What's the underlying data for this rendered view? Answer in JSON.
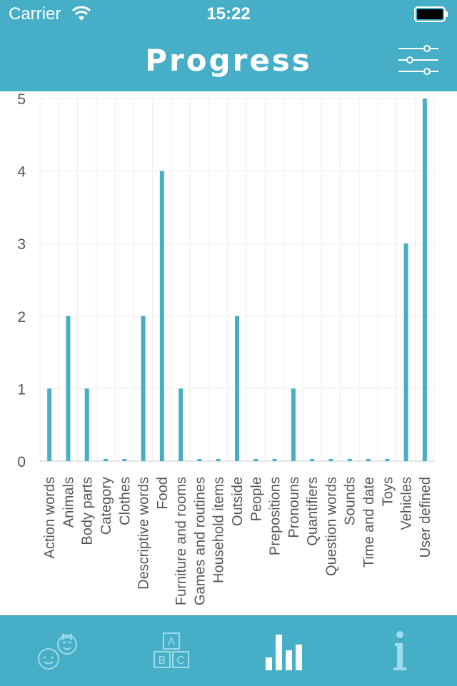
{
  "status": {
    "carrier": "Carrier",
    "time": "15:22"
  },
  "nav": {
    "title": "Progress",
    "filter_icon": "sliders-icon"
  },
  "colors": {
    "accent": "#46aec7",
    "bar": "#46aec7",
    "tab_icon": "#9fdceb"
  },
  "chart_data": {
    "type": "bar",
    "categories": [
      "Action words",
      "Animals",
      "Body parts",
      "Category",
      "Clothes",
      "Descriptive words",
      "Food",
      "Furniture and rooms",
      "Games and routines",
      "Household items",
      "Outside",
      "People",
      "Prepositions",
      "Pronouns",
      "Quantifiers",
      "Question words",
      "Sounds",
      "Time and date",
      "Toys",
      "Vehicles",
      "User defined"
    ],
    "values": [
      1,
      2,
      1,
      0,
      0,
      2,
      4,
      1,
      0,
      0,
      2,
      0,
      0,
      1,
      0,
      0,
      0,
      0,
      0,
      3,
      5
    ],
    "ylim": [
      0,
      5
    ],
    "yticks": [
      0,
      1,
      2,
      3,
      4,
      5
    ],
    "grid": true
  },
  "tabs": [
    {
      "name": "children",
      "icon": "children-icon"
    },
    {
      "name": "words",
      "icon": "abc-blocks-icon"
    },
    {
      "name": "progress",
      "icon": "bar-chart-icon",
      "selected": true
    },
    {
      "name": "info",
      "icon": "info-icon"
    }
  ]
}
